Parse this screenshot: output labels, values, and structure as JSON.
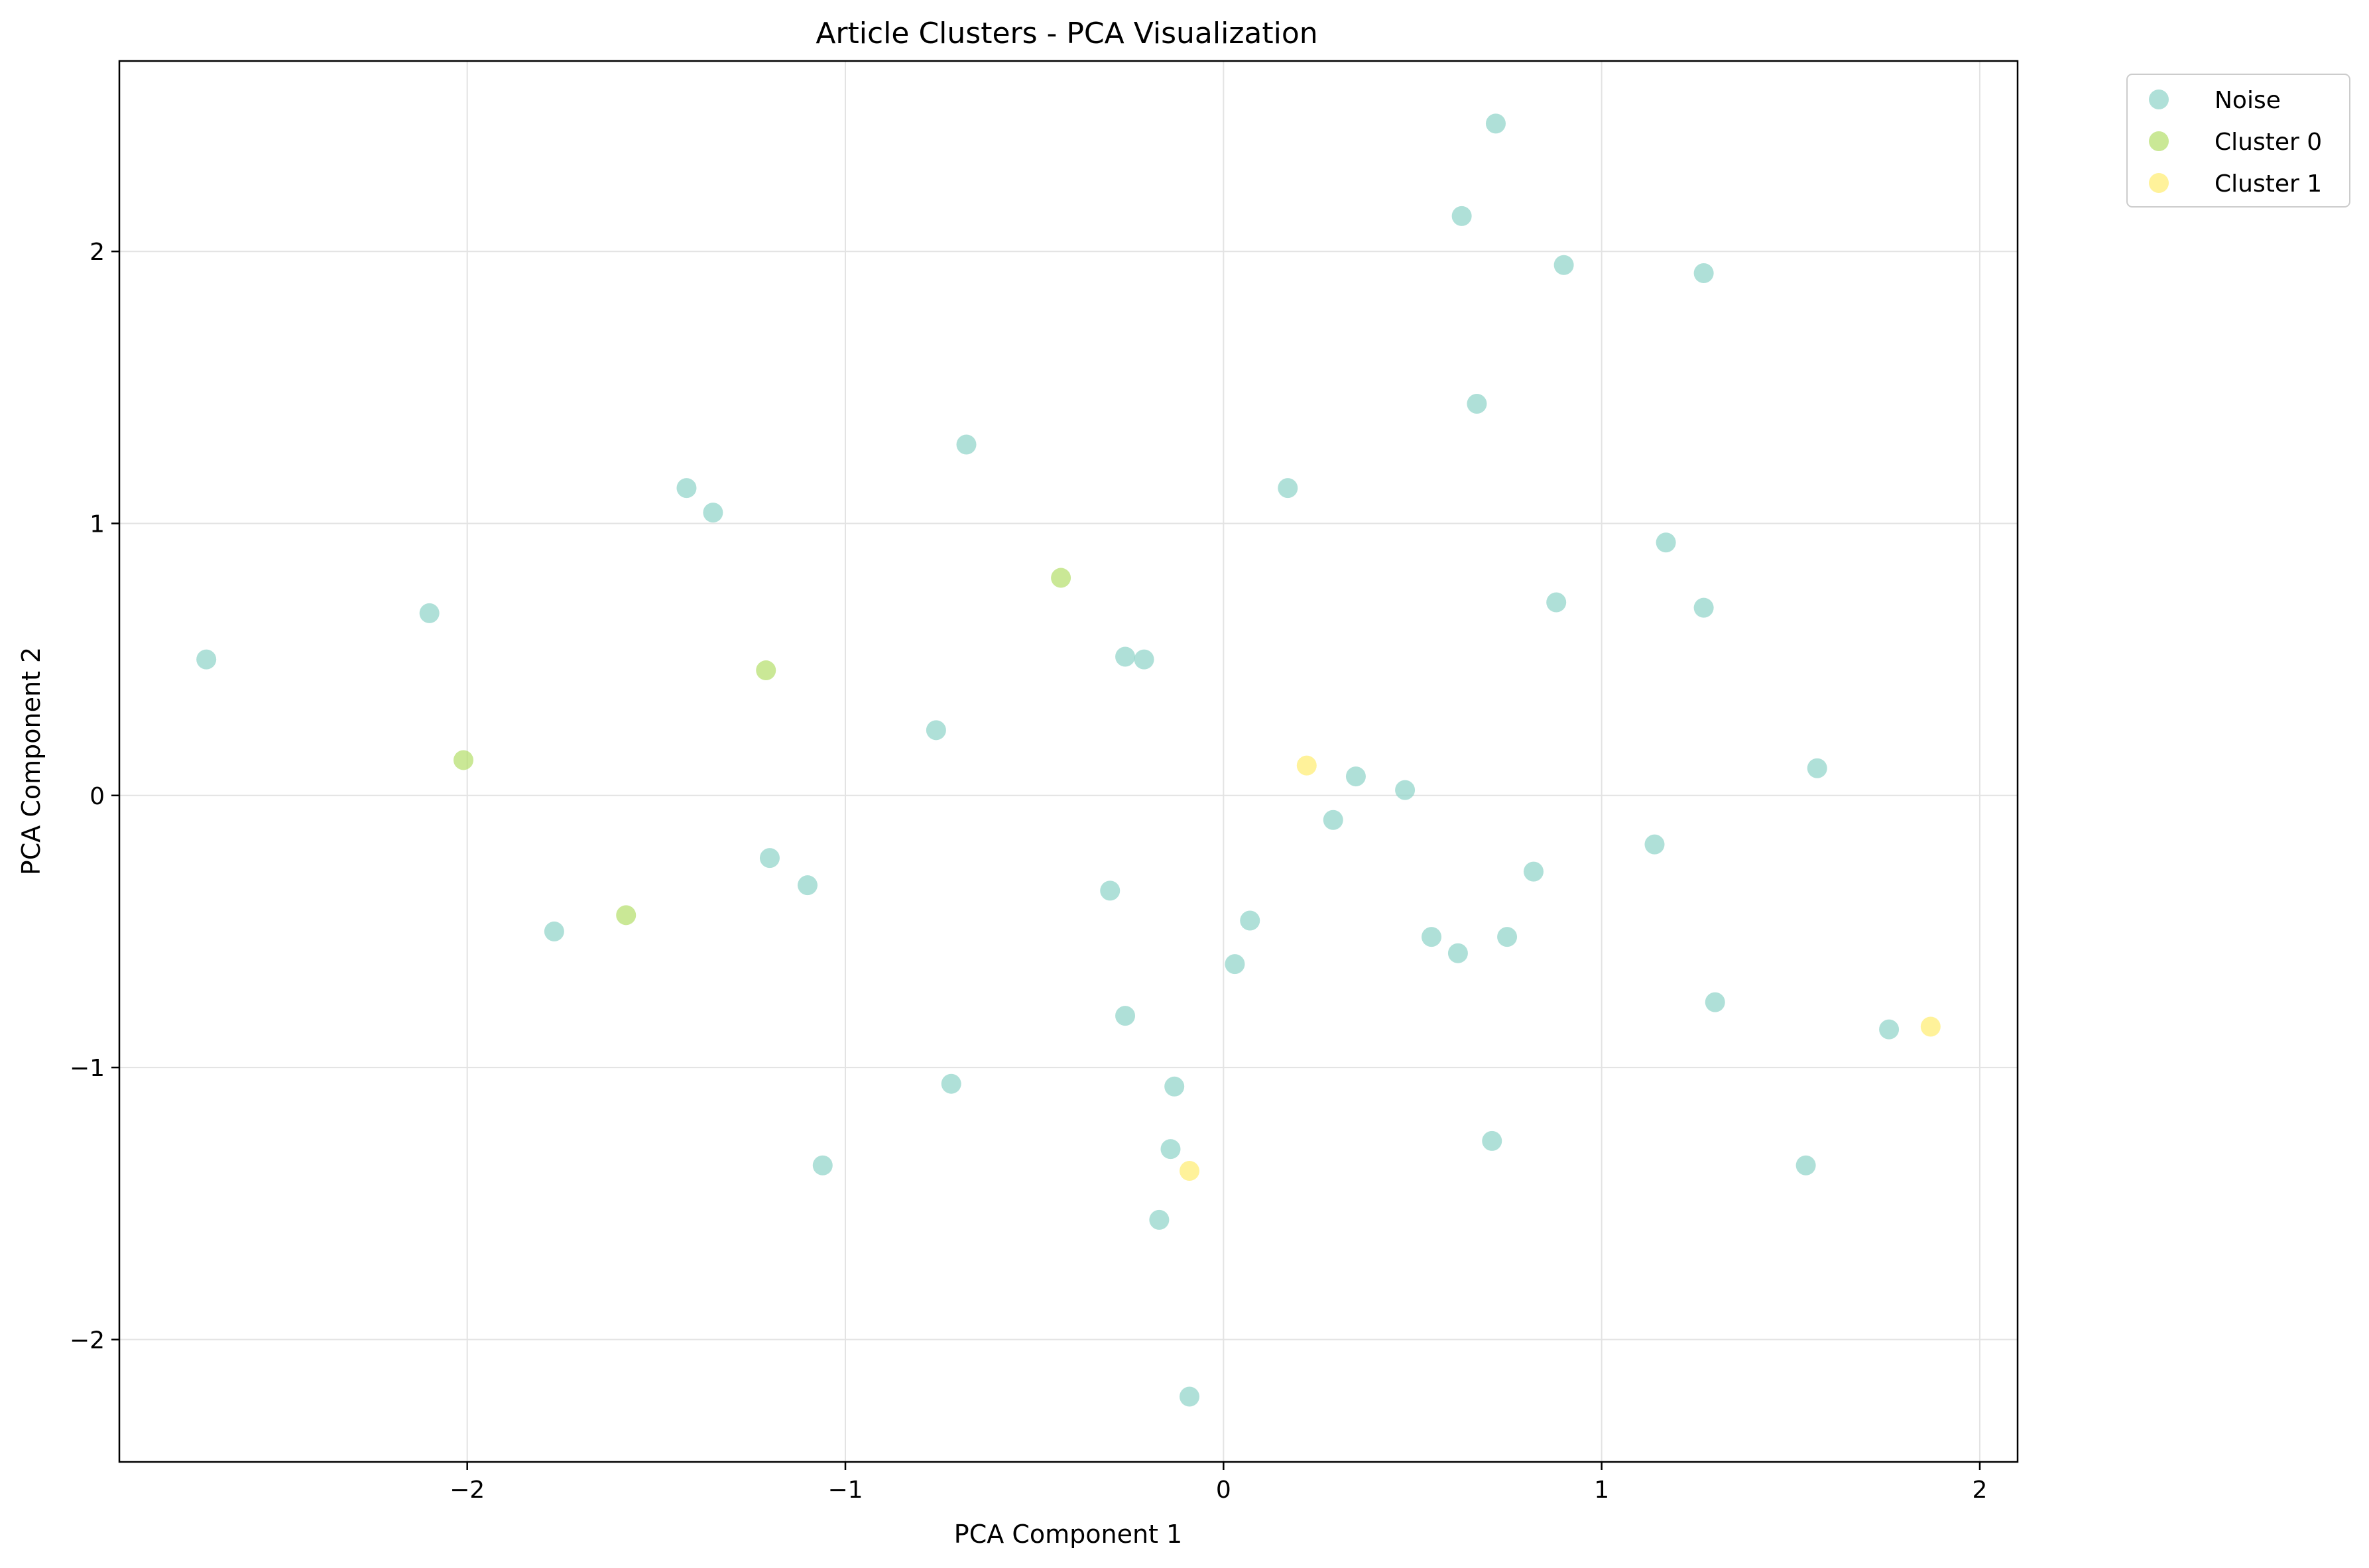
{
  "chart_data": {
    "type": "scatter",
    "title": "Article Clusters - PCA Visualization",
    "xlabel": "PCA Component 1",
    "ylabel": "PCA Component 2",
    "xlim": [
      -2.92,
      2.1
    ],
    "ylim": [
      -2.45,
      2.7
    ],
    "x_ticks": [
      -2,
      -1,
      0,
      1,
      2
    ],
    "x_tick_labels": [
      "−2",
      "−1",
      "0",
      "1",
      "2"
    ],
    "y_ticks": [
      -2,
      -1,
      0,
      1,
      2
    ],
    "y_tick_labels": [
      "−2",
      "−1",
      "0",
      "1",
      "2"
    ],
    "grid": true,
    "legend_position": "outside-top-right",
    "series": [
      {
        "name": "Noise",
        "color": "#8dd3c7",
        "points": [
          [
            -2.69,
            0.5
          ],
          [
            -2.1,
            0.67
          ],
          [
            -1.77,
            -0.5
          ],
          [
            -1.42,
            1.13
          ],
          [
            -1.35,
            1.04
          ],
          [
            -1.2,
            -0.23
          ],
          [
            -1.1,
            -0.33
          ],
          [
            -1.06,
            -1.36
          ],
          [
            -0.76,
            0.24
          ],
          [
            -0.72,
            -1.06
          ],
          [
            -0.68,
            1.29
          ],
          [
            -0.3,
            -0.35
          ],
          [
            -0.26,
            0.51
          ],
          [
            -0.26,
            -0.81
          ],
          [
            -0.21,
            0.5
          ],
          [
            -0.14,
            -1.3
          ],
          [
            -0.13,
            -1.07
          ],
          [
            -0.17,
            -1.56
          ],
          [
            -0.09,
            -2.21
          ],
          [
            0.03,
            -0.62
          ],
          [
            0.07,
            -0.46
          ],
          [
            0.17,
            1.13
          ],
          [
            0.29,
            -0.09
          ],
          [
            0.35,
            0.07
          ],
          [
            0.48,
            0.02
          ],
          [
            0.55,
            -0.52
          ],
          [
            0.62,
            -0.58
          ],
          [
            0.63,
            2.13
          ],
          [
            0.67,
            1.44
          ],
          [
            0.71,
            -1.27
          ],
          [
            0.72,
            2.47
          ],
          [
            0.75,
            -0.52
          ],
          [
            0.82,
            -0.28
          ],
          [
            0.88,
            0.71
          ],
          [
            0.9,
            1.95
          ],
          [
            1.14,
            -0.18
          ],
          [
            1.17,
            0.93
          ],
          [
            1.27,
            1.92
          ],
          [
            1.27,
            0.69
          ],
          [
            1.3,
            -0.76
          ],
          [
            1.54,
            -1.36
          ],
          [
            1.57,
            0.1
          ],
          [
            1.76,
            -0.86
          ]
        ]
      },
      {
        "name": "Cluster 0",
        "color": "#b3de69",
        "points": [
          [
            -2.01,
            0.13
          ],
          [
            -1.58,
            -0.44
          ],
          [
            -1.21,
            0.46
          ],
          [
            -0.43,
            0.8
          ]
        ]
      },
      {
        "name": "Cluster 1",
        "color": "#ffed6f",
        "points": [
          [
            0.22,
            0.11
          ],
          [
            -0.09,
            -1.38
          ],
          [
            1.87,
            -0.85
          ]
        ]
      }
    ]
  }
}
